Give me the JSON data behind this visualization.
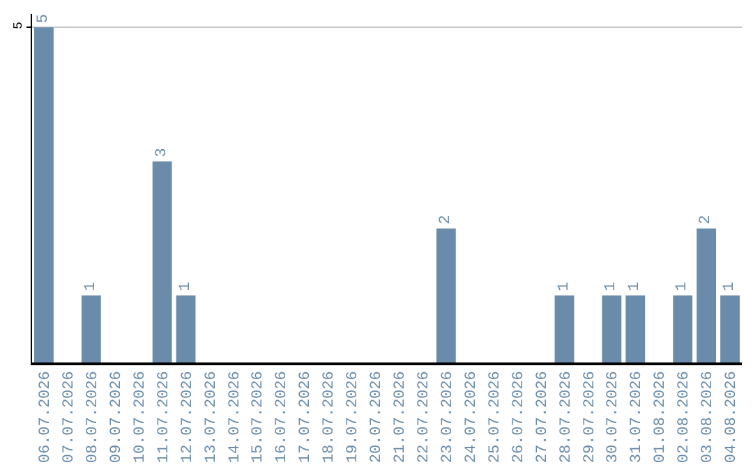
{
  "chart_data": {
    "type": "bar",
    "categories": [
      "06.07.2026",
      "07.07.2026",
      "08.07.2026",
      "09.07.2026",
      "10.07.2026",
      "11.07.2026",
      "12.07.2026",
      "13.07.2026",
      "14.07.2026",
      "15.07.2026",
      "16.07.2026",
      "17.07.2026",
      "18.07.2026",
      "19.07.2026",
      "20.07.2026",
      "21.07.2026",
      "22.07.2026",
      "23.07.2026",
      "24.07.2026",
      "25.07.2026",
      "26.07.2026",
      "27.07.2026",
      "28.07.2026",
      "29.07.2026",
      "30.07.2026",
      "31.07.2026",
      "01.08.2026",
      "02.08.2026",
      "03.08.2026",
      "04.08.2026"
    ],
    "values": [
      5,
      0,
      1,
      0,
      0,
      3,
      1,
      0,
      0,
      0,
      0,
      0,
      0,
      0,
      0,
      0,
      0,
      2,
      0,
      0,
      0,
      0,
      1,
      0,
      1,
      1,
      0,
      1,
      2,
      1
    ],
    "value_labels": [
      "5",
      null,
      "1",
      null,
      null,
      "3",
      "1",
      null,
      null,
      null,
      null,
      null,
      null,
      null,
      null,
      null,
      null,
      "2",
      null,
      null,
      null,
      null,
      "1",
      null,
      "1",
      "1",
      null,
      "1",
      "2",
      "1"
    ],
    "color": "#6a8caa",
    "ylim": [
      0,
      5.2
    ],
    "yticks": [
      5
    ],
    "grid": "y"
  }
}
